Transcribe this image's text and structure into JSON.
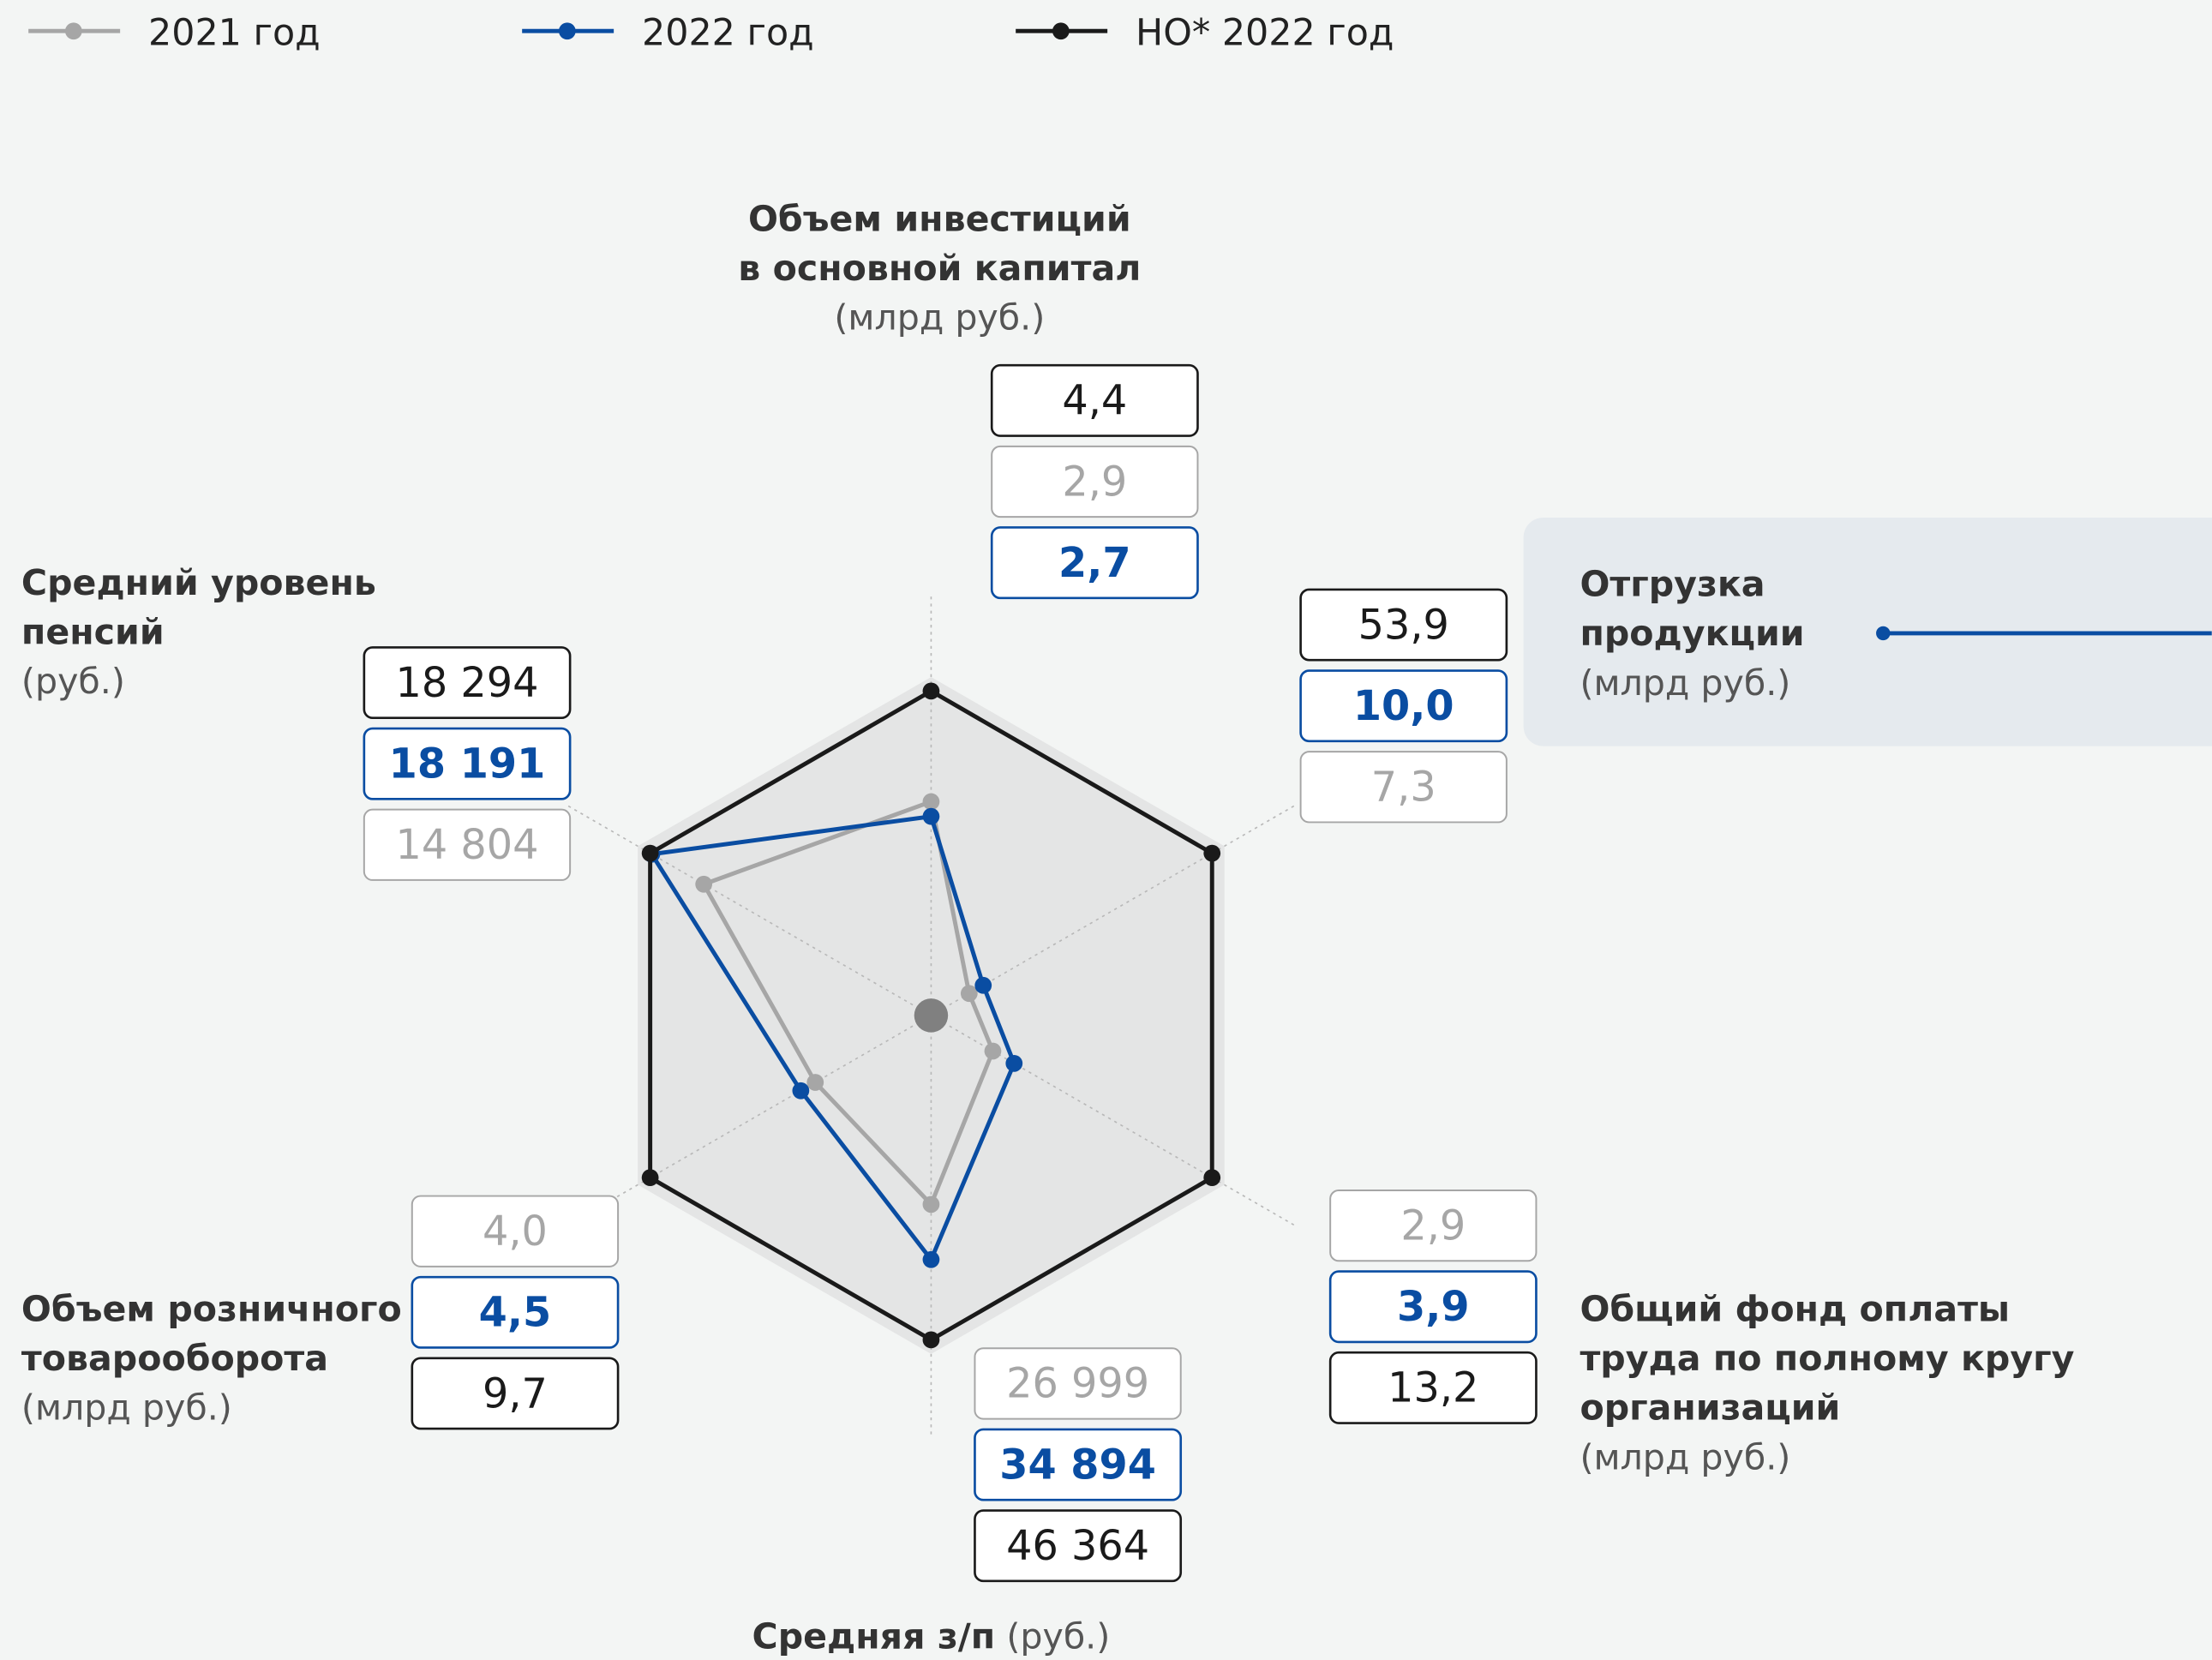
{
  "chart_data": {
    "type": "radar",
    "category_lines": [
      [
        "Объем инвестиций",
        "в основной капитал"
      ],
      [
        "Отгрузка",
        "продукции"
      ],
      [
        "Общий фонд оплаты",
        "труда по полному кругу",
        "организаций"
      ],
      [
        "Средняя з/п"
      ],
      [
        "Объем розничного",
        "товарооборота"
      ],
      [
        "Средний уровень",
        "пенсий"
      ]
    ],
    "category_units": [
      "(млрд руб.)",
      "(млрд руб.)",
      "(млрд руб.)",
      "(руб.)",
      "(млрд руб.)",
      "(руб.)"
    ],
    "series": [
      {
        "name": "2021 год",
        "color": "#a6a6a6",
        "values": [
          2.9,
          7.3,
          2.9,
          26999,
          4.0,
          14804
        ],
        "value_labels": [
          "2,9",
          "7,3",
          "2,9",
          "26 999",
          "4,0",
          "14 804"
        ]
      },
      {
        "name": "2022 год",
        "color": "#0a4da2",
        "values": [
          2.7,
          10.0,
          3.9,
          34894,
          4.5,
          18191
        ],
        "value_labels": [
          "2,7",
          "10,0",
          "3,9",
          "34 894",
          "4,5",
          "18 191"
        ]
      },
      {
        "name": "НО* 2022 год",
        "color": "#1a1a1a",
        "values": [
          4.4,
          53.9,
          13.2,
          46364,
          9.7,
          18294
        ],
        "value_labels": [
          "4,4",
          "53,9",
          "13,2",
          "46 364",
          "9,7",
          "18 294"
        ]
      }
    ]
  }
}
